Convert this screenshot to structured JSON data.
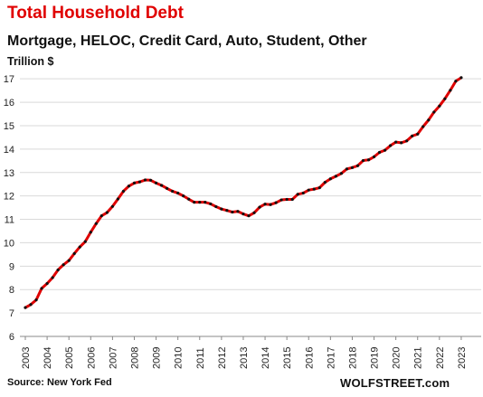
{
  "chart_data": {
    "type": "line",
    "title": "Total Household Debt",
    "subtitle": "Mortgage, HELOC, Credit Card, Auto, Student, Other",
    "ylabel": "Trillion $",
    "xlabel": "",
    "ylim": [
      6,
      17.2
    ],
    "xlim": [
      2003,
      2023.75
    ],
    "yticks": [
      6,
      7,
      8,
      9,
      10,
      11,
      12,
      13,
      14,
      15,
      16,
      17
    ],
    "xticks": [
      "2003",
      "2004",
      "2005",
      "2006",
      "2007",
      "2008",
      "2009",
      "2010",
      "2011",
      "2012",
      "2013",
      "2014",
      "2015",
      "2016",
      "2017",
      "2018",
      "2019",
      "2020",
      "2021",
      "2022",
      "2023"
    ],
    "grid": "horizontal",
    "line_color": "#e00000",
    "marker_color": "#111111",
    "series": [
      {
        "values": [
          [
            2003.0,
            7.23
          ],
          [
            2003.25,
            7.36
          ],
          [
            2003.5,
            7.56
          ],
          [
            2003.75,
            8.05
          ],
          [
            2004.0,
            8.26
          ],
          [
            2004.25,
            8.51
          ],
          [
            2004.5,
            8.84
          ],
          [
            2004.75,
            9.06
          ],
          [
            2005.0,
            9.24
          ],
          [
            2005.25,
            9.54
          ],
          [
            2005.5,
            9.82
          ],
          [
            2005.75,
            10.05
          ],
          [
            2006.0,
            10.45
          ],
          [
            2006.25,
            10.82
          ],
          [
            2006.5,
            11.15
          ],
          [
            2006.75,
            11.29
          ],
          [
            2007.0,
            11.55
          ],
          [
            2007.25,
            11.87
          ],
          [
            2007.5,
            12.2
          ],
          [
            2007.75,
            12.42
          ],
          [
            2008.0,
            12.55
          ],
          [
            2008.25,
            12.6
          ],
          [
            2008.5,
            12.68
          ],
          [
            2008.75,
            12.67
          ],
          [
            2009.0,
            12.55
          ],
          [
            2009.25,
            12.45
          ],
          [
            2009.5,
            12.32
          ],
          [
            2009.75,
            12.2
          ],
          [
            2010.0,
            12.12
          ],
          [
            2010.25,
            12.0
          ],
          [
            2010.5,
            11.86
          ],
          [
            2010.75,
            11.73
          ],
          [
            2011.0,
            11.73
          ],
          [
            2011.25,
            11.73
          ],
          [
            2011.5,
            11.66
          ],
          [
            2011.75,
            11.54
          ],
          [
            2012.0,
            11.44
          ],
          [
            2012.25,
            11.38
          ],
          [
            2012.5,
            11.31
          ],
          [
            2012.75,
            11.34
          ],
          [
            2013.0,
            11.23
          ],
          [
            2013.25,
            11.15
          ],
          [
            2013.5,
            11.28
          ],
          [
            2013.75,
            11.52
          ],
          [
            2014.0,
            11.65
          ],
          [
            2014.25,
            11.63
          ],
          [
            2014.5,
            11.71
          ],
          [
            2014.75,
            11.83
          ],
          [
            2015.0,
            11.85
          ],
          [
            2015.25,
            11.85
          ],
          [
            2015.5,
            12.07
          ],
          [
            2015.75,
            12.12
          ],
          [
            2016.0,
            12.25
          ],
          [
            2016.25,
            12.29
          ],
          [
            2016.5,
            12.35
          ],
          [
            2016.75,
            12.58
          ],
          [
            2017.0,
            12.73
          ],
          [
            2017.25,
            12.84
          ],
          [
            2017.5,
            12.96
          ],
          [
            2017.75,
            13.15
          ],
          [
            2018.0,
            13.21
          ],
          [
            2018.25,
            13.29
          ],
          [
            2018.5,
            13.51
          ],
          [
            2018.75,
            13.54
          ],
          [
            2019.0,
            13.67
          ],
          [
            2019.25,
            13.86
          ],
          [
            2019.5,
            13.95
          ],
          [
            2019.75,
            14.15
          ],
          [
            2020.0,
            14.3
          ],
          [
            2020.25,
            14.27
          ],
          [
            2020.5,
            14.35
          ],
          [
            2020.75,
            14.56
          ],
          [
            2021.0,
            14.64
          ],
          [
            2021.25,
            14.96
          ],
          [
            2021.5,
            15.24
          ],
          [
            2021.75,
            15.58
          ],
          [
            2022.0,
            15.84
          ],
          [
            2022.25,
            16.15
          ],
          [
            2022.5,
            16.51
          ],
          [
            2022.75,
            16.9
          ],
          [
            2023.0,
            17.05
          ]
        ]
      }
    ]
  },
  "footer": {
    "source": "Source: New York Fed",
    "brand": "WOLFSTREET.com"
  }
}
